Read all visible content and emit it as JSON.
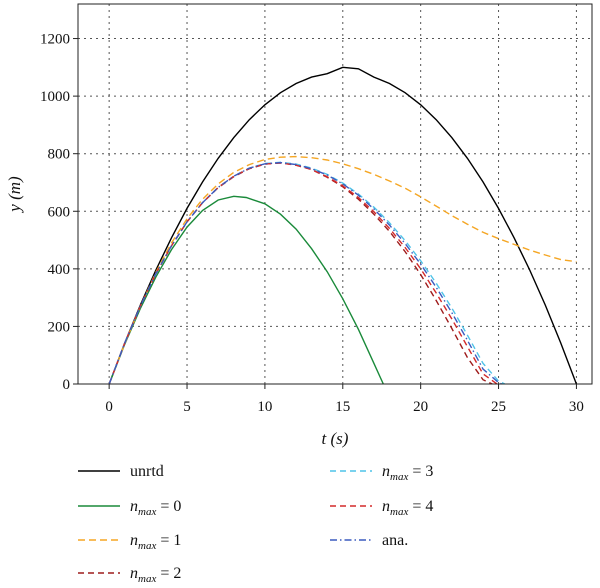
{
  "chart_data": {
    "type": "line",
    "xlabel": "t (s)",
    "ylabel": "y (m)",
    "xlim": [
      -2,
      31
    ],
    "ylim": [
      0,
      1320
    ],
    "xticks": [
      0,
      5,
      10,
      15,
      20,
      25,
      30
    ],
    "yticks": [
      0,
      200,
      400,
      600,
      800,
      1000,
      1200
    ],
    "grid": true,
    "legend_position": "bottom",
    "series": [
      {
        "name": "unrtd",
        "label_prefix": "unrtd",
        "label_value": "",
        "color": "#000000",
        "dash": "solid",
        "x": [
          0,
          1,
          2,
          3,
          4,
          5,
          6,
          7,
          8,
          9,
          10,
          11,
          12,
          13,
          14,
          15,
          16,
          17,
          18,
          19,
          20,
          21,
          22,
          23,
          24,
          25,
          26,
          27,
          28,
          29,
          30
        ],
        "y": [
          0,
          142,
          274,
          396,
          508,
          610,
          702,
          784,
          856,
          918,
          970,
          1012,
          1044,
          1066,
          1078,
          1100,
          1095,
          1066,
          1044,
          1012,
          970,
          918,
          856,
          784,
          702,
          610,
          508,
          396,
          274,
          142,
          0
        ]
      },
      {
        "name": "n_max = 0",
        "label_prefix": "n",
        "label_sub": "max",
        "label_value": " = 0",
        "color": "#1a8a3a",
        "dash": "solid",
        "x": [
          0,
          1,
          2,
          3,
          4,
          5,
          6,
          7,
          8,
          8.8,
          10,
          11,
          12,
          13,
          14,
          15,
          16,
          17,
          17.6
        ],
        "y": [
          0,
          138,
          262,
          372,
          467,
          545,
          603,
          639,
          652,
          648,
          626,
          590,
          538,
          470,
          390,
          296,
          190,
          72,
          0
        ]
      },
      {
        "name": "n_max = 1",
        "label_prefix": "n",
        "label_sub": "max",
        "label_value": " = 1",
        "color": "#f5a623",
        "dash": "orange",
        "x": [
          0,
          1,
          2,
          3,
          4,
          5,
          6,
          7,
          8,
          9,
          10,
          11,
          12,
          13,
          14,
          15,
          16,
          17,
          18,
          19,
          20,
          21,
          22,
          23,
          24,
          25,
          26,
          27,
          28,
          29,
          30
        ],
        "y": [
          0,
          140,
          270,
          388,
          490,
          574,
          642,
          695,
          735,
          762,
          780,
          788,
          790,
          786,
          778,
          765,
          748,
          728,
          705,
          680,
          650,
          618,
          585,
          555,
          527,
          505,
          485,
          465,
          448,
          432,
          425
        ]
      },
      {
        "name": "n_max = 2",
        "label_prefix": "n",
        "label_sub": "max",
        "label_value": " = 2",
        "color": "#9e1b1b",
        "dash": "dash",
        "x": [
          0,
          1,
          2,
          3,
          4,
          5,
          6,
          7,
          8,
          9,
          10,
          11,
          12,
          13,
          14,
          15,
          16,
          17,
          18,
          19,
          20,
          21,
          22,
          23,
          24,
          24.6
        ],
        "y": [
          0,
          142,
          270,
          383,
          480,
          563,
          630,
          682,
          720,
          748,
          764,
          768,
          760,
          745,
          718,
          685,
          642,
          590,
          530,
          460,
          380,
          290,
          193,
          92,
          15,
          0
        ]
      },
      {
        "name": "n_max = 3",
        "label_prefix": "n",
        "label_sub": "max",
        "label_value": " = 3",
        "color": "#4fc3e8",
        "dash": "dash",
        "x": [
          0,
          1,
          2,
          3,
          4,
          5,
          6,
          7,
          8,
          9,
          10,
          11,
          12,
          13,
          14,
          15,
          16,
          17,
          18,
          19,
          20,
          21,
          22,
          23,
          24,
          25,
          25.4
        ],
        "y": [
          0,
          142,
          270,
          383,
          480,
          563,
          630,
          683,
          722,
          750,
          766,
          770,
          764,
          750,
          728,
          698,
          660,
          614,
          560,
          498,
          428,
          350,
          264,
          170,
          72,
          10,
          0
        ]
      },
      {
        "name": "n_max = 4",
        "label_prefix": "n",
        "label_sub": "max",
        "label_value": " = 4",
        "color": "#d42a2a",
        "dash": "dash",
        "x": [
          0,
          1,
          2,
          3,
          4,
          5,
          6,
          7,
          8,
          9,
          10,
          11,
          12,
          13,
          14,
          15,
          16,
          17,
          18,
          19,
          20,
          21,
          22,
          23,
          24,
          24.9
        ],
        "y": [
          0,
          142,
          270,
          383,
          480,
          563,
          630,
          683,
          722,
          749,
          764,
          768,
          760,
          745,
          720,
          688,
          648,
          598,
          540,
          474,
          400,
          316,
          226,
          130,
          35,
          0
        ]
      },
      {
        "name": "ana.",
        "label_prefix": "ana.",
        "label_value": "",
        "color": "#3b5bbf",
        "dash": "dashdot",
        "x": [
          0,
          1,
          2,
          3,
          4,
          5,
          6,
          7,
          8,
          9,
          10,
          11,
          12,
          13,
          14,
          15,
          16,
          17,
          18,
          19,
          20,
          21,
          22,
          23,
          24,
          25,
          25.2
        ],
        "y": [
          0,
          142,
          270,
          383,
          480,
          563,
          630,
          683,
          722,
          750,
          765,
          769,
          762,
          748,
          726,
          695,
          656,
          608,
          552,
          488,
          416,
          336,
          248,
          152,
          52,
          5,
          0
        ]
      }
    ]
  }
}
